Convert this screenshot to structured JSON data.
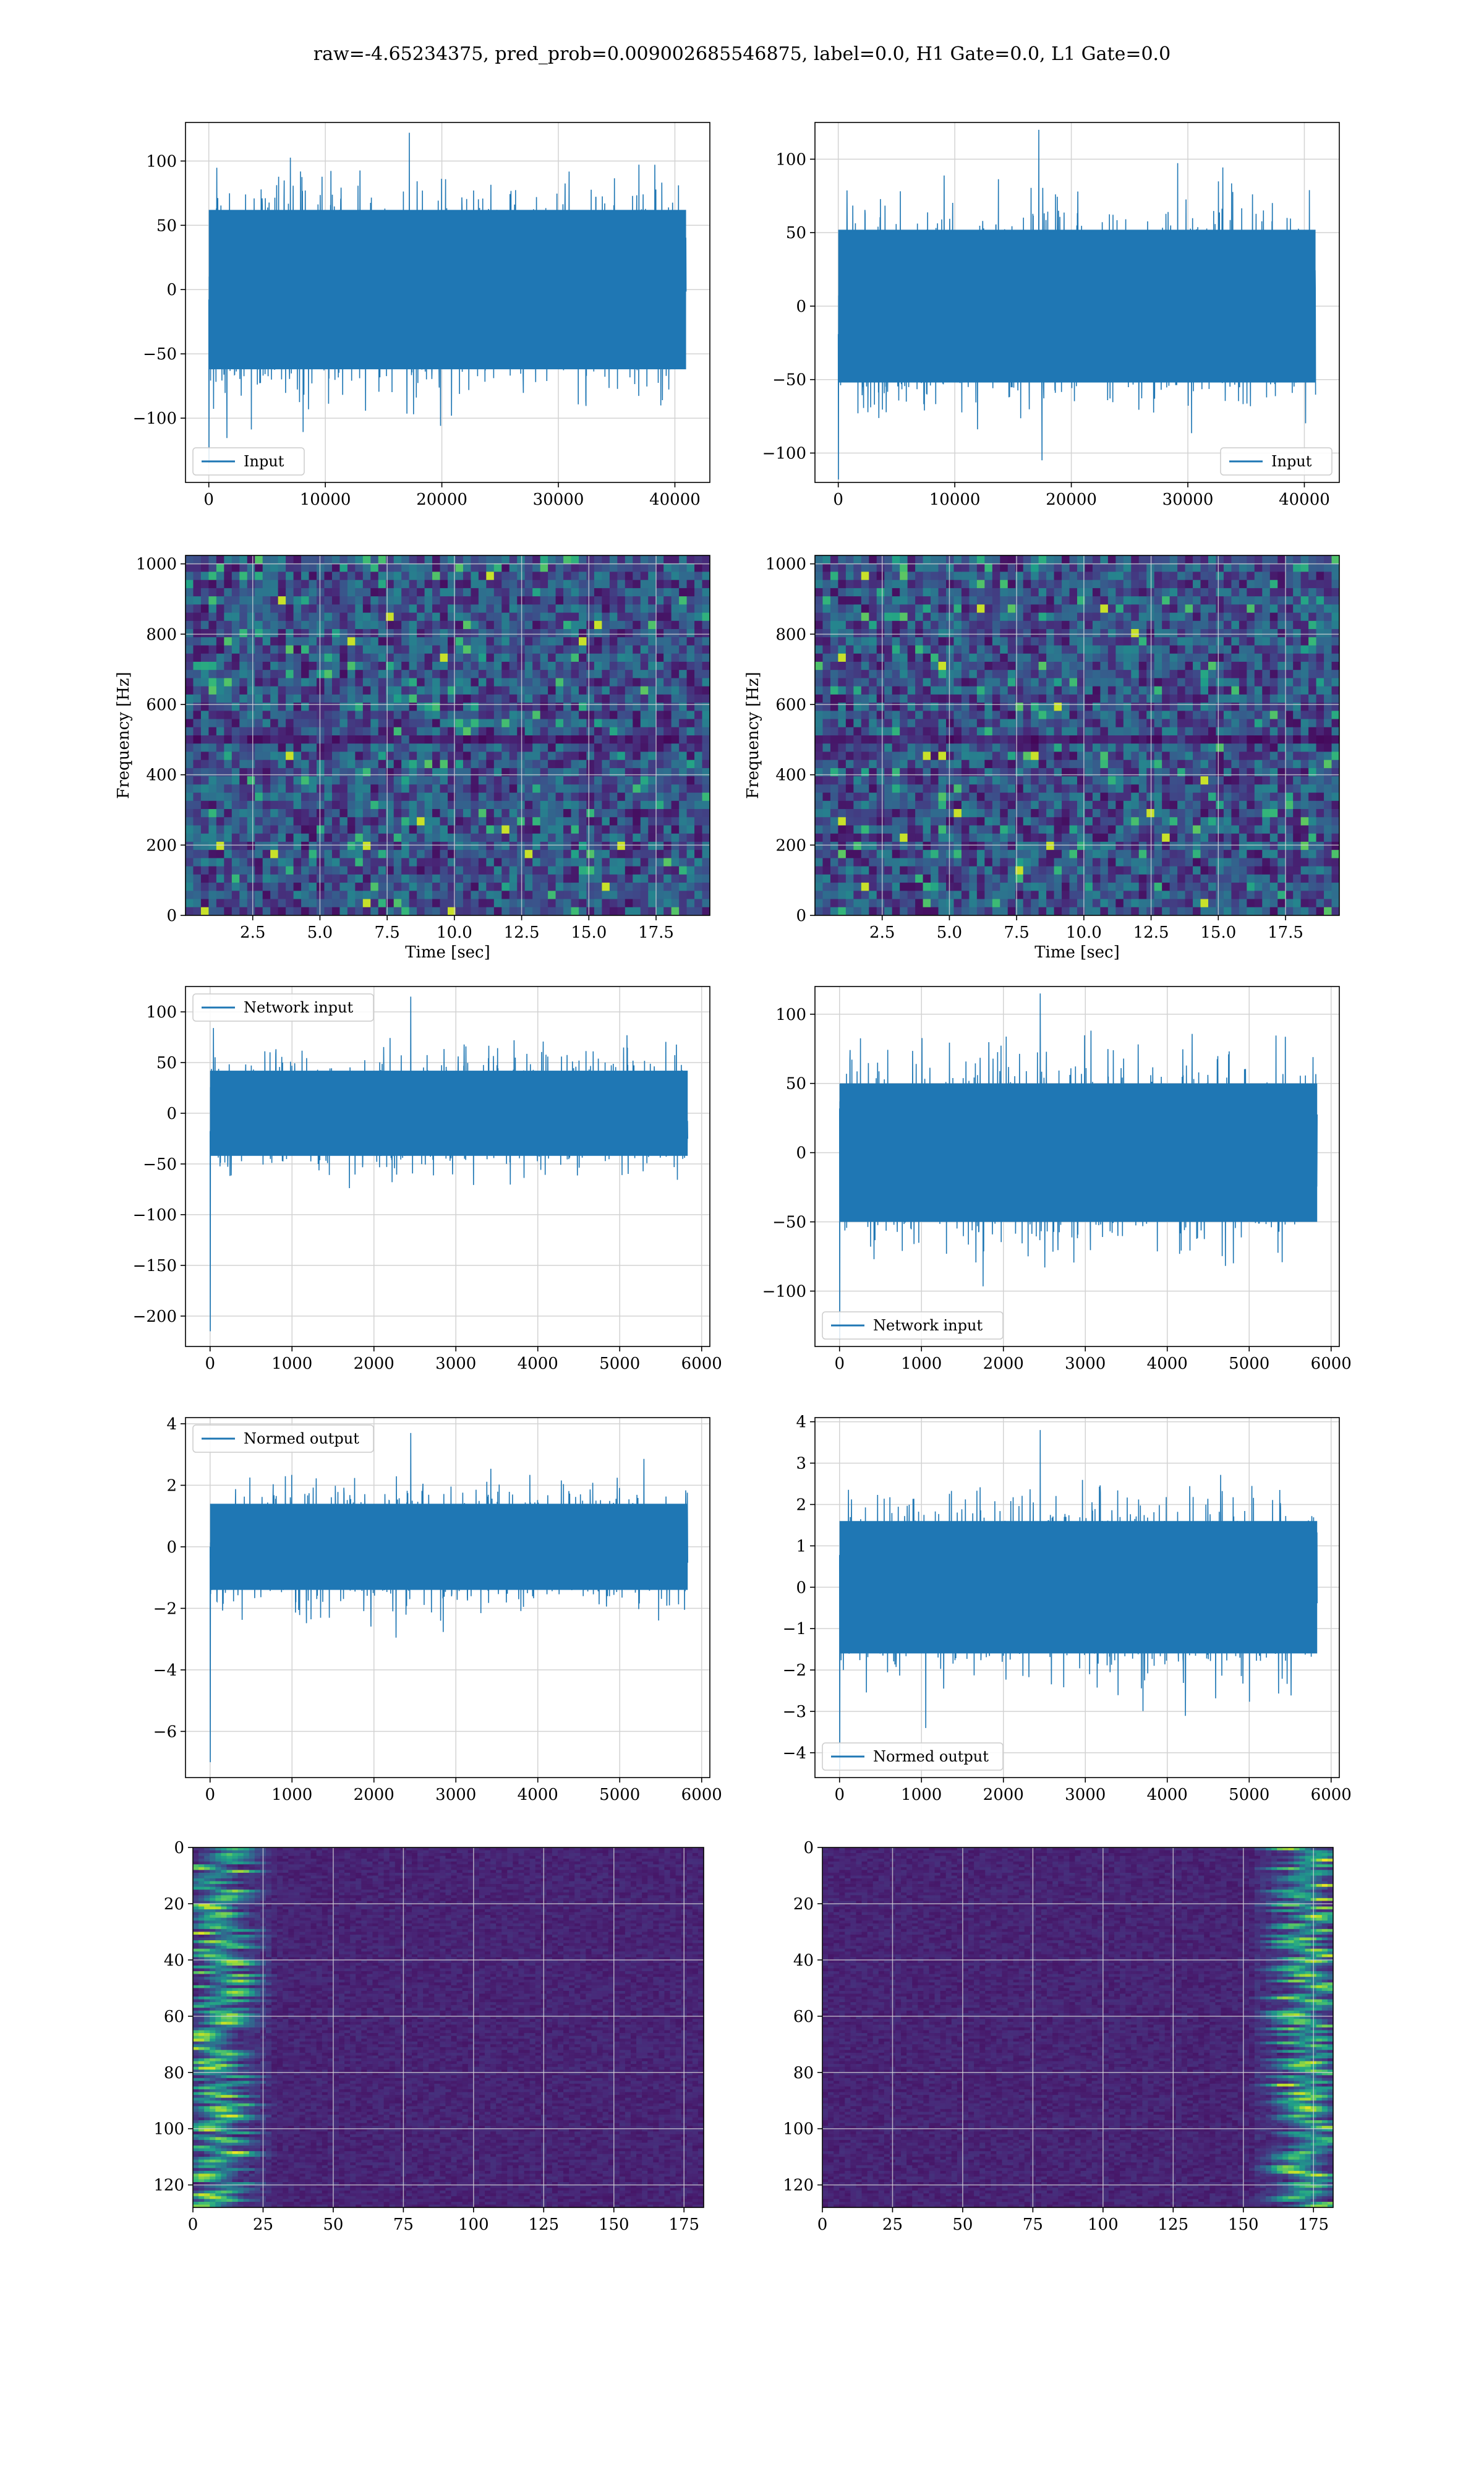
{
  "suptitle": "raw=-4.65234375, pred_prob=0.009002685546875, label=0.0, H1 Gate=0.0, L1 Gate=0.0",
  "colors": {
    "line": "#1f77b4",
    "grid": "#d3d3d3",
    "viridis_dark": "#440154",
    "viridis_mid": "#21918c",
    "viridis_bright": "#fde725"
  },
  "chart_data": [
    {
      "id": "input-h1",
      "type": "line",
      "legend": "Input",
      "legend_loc": "lower left",
      "grid": true,
      "xlim": [
        -2000,
        43000
      ],
      "ylim": [
        -150,
        130
      ],
      "xticks": [
        0,
        10000,
        20000,
        30000,
        40000
      ],
      "yticks": [
        -100,
        -50,
        0,
        50,
        100
      ],
      "x_range": [
        0,
        40960
      ],
      "typical_band": [
        -62,
        62
      ],
      "peaks": [
        122,
        -135
      ]
    },
    {
      "id": "input-l1",
      "type": "line",
      "legend": "Input",
      "legend_loc": "lower right",
      "grid": true,
      "xlim": [
        -2000,
        43000
      ],
      "ylim": [
        -120,
        125
      ],
      "xticks": [
        0,
        10000,
        20000,
        30000,
        40000
      ],
      "yticks": [
        -100,
        -50,
        0,
        50,
        100
      ],
      "x_range": [
        0,
        40960
      ],
      "typical_band": [
        -52,
        52
      ],
      "peaks": [
        120,
        -118
      ]
    },
    {
      "id": "spectrogram-h1",
      "type": "heatmap",
      "grid": true,
      "xlabel": "Time [sec]",
      "ylabel": "Frequency [Hz]",
      "xlim": [
        0,
        19.5
      ],
      "ylim": [
        0,
        1024
      ],
      "xticks": [
        "2.5",
        "5.0",
        "7.5",
        "10.0",
        "12.5",
        "15.0",
        "17.5"
      ],
      "yticks": [
        0,
        200,
        400,
        600,
        800,
        1000
      ]
    },
    {
      "id": "spectrogram-l1",
      "type": "heatmap",
      "grid": true,
      "xlabel": "Time [sec]",
      "ylabel": "Frequency [Hz]",
      "xlim": [
        0,
        19.5
      ],
      "ylim": [
        0,
        1024
      ],
      "xticks": [
        "2.5",
        "5.0",
        "7.5",
        "10.0",
        "12.5",
        "15.0",
        "17.5"
      ],
      "yticks": [
        0,
        200,
        400,
        600,
        800,
        1000
      ]
    },
    {
      "id": "network-input-h1",
      "type": "line",
      "legend": "Network input",
      "legend_loc": "upper left",
      "grid": true,
      "xlim": [
        -300,
        6100
      ],
      "ylim": [
        -230,
        125
      ],
      "xticks": [
        0,
        1000,
        2000,
        3000,
        4000,
        5000,
        6000
      ],
      "yticks": [
        -200,
        -150,
        -100,
        -50,
        0,
        50,
        100
      ],
      "x_range": [
        0,
        5830
      ],
      "typical_band": [
        -42,
        42
      ],
      "peaks": [
        115,
        -215
      ]
    },
    {
      "id": "network-input-l1",
      "type": "line",
      "legend": "Network input",
      "legend_loc": "lower left",
      "grid": true,
      "xlim": [
        -300,
        6100
      ],
      "ylim": [
        -140,
        120
      ],
      "xticks": [
        0,
        1000,
        2000,
        3000,
        4000,
        5000,
        6000
      ],
      "yticks": [
        -100,
        -50,
        0,
        50,
        100
      ],
      "x_range": [
        0,
        5830
      ],
      "typical_band": [
        -50,
        50
      ],
      "peaks": [
        115,
        -135
      ]
    },
    {
      "id": "normed-output-h1",
      "type": "line",
      "legend": "Normed output",
      "legend_loc": "upper left",
      "grid": true,
      "xlim": [
        -300,
        6100
      ],
      "ylim": [
        -7.5,
        4.2
      ],
      "xticks": [
        0,
        1000,
        2000,
        3000,
        4000,
        5000,
        6000
      ],
      "yticks": [
        -6,
        -4,
        -2,
        0,
        2,
        4
      ],
      "x_range": [
        0,
        5830
      ],
      "typical_band": [
        -1.4,
        1.4
      ],
      "peaks": [
        3.7,
        -7.0
      ]
    },
    {
      "id": "normed-output-l1",
      "type": "line",
      "legend": "Normed output",
      "legend_loc": "lower left",
      "grid": true,
      "xlim": [
        -300,
        6100
      ],
      "ylim": [
        -4.6,
        4.1
      ],
      "xticks": [
        0,
        1000,
        2000,
        3000,
        4000,
        5000,
        6000
      ],
      "yticks": [
        -4,
        -3,
        -2,
        -1,
        0,
        1,
        2,
        3,
        4
      ],
      "x_range": [
        0,
        5830
      ],
      "typical_band": [
        -1.6,
        1.6
      ],
      "peaks": [
        3.8,
        -4.4
      ]
    },
    {
      "id": "feature-map-h1",
      "type": "heatmap",
      "grid": true,
      "xlim": [
        0,
        182
      ],
      "ylim": [
        128,
        0
      ],
      "xticks": [
        0,
        25,
        50,
        75,
        100,
        125,
        150,
        175
      ],
      "yticks": [
        0,
        20,
        40,
        60,
        80,
        100,
        120
      ],
      "bright_region": "left"
    },
    {
      "id": "feature-map-l1",
      "type": "heatmap",
      "grid": true,
      "xlim": [
        0,
        182
      ],
      "ylim": [
        128,
        0
      ],
      "xticks": [
        0,
        25,
        50,
        75,
        100,
        125,
        150,
        175
      ],
      "yticks": [
        0,
        20,
        40,
        60,
        80,
        100,
        120
      ],
      "bright_region": "right"
    }
  ]
}
